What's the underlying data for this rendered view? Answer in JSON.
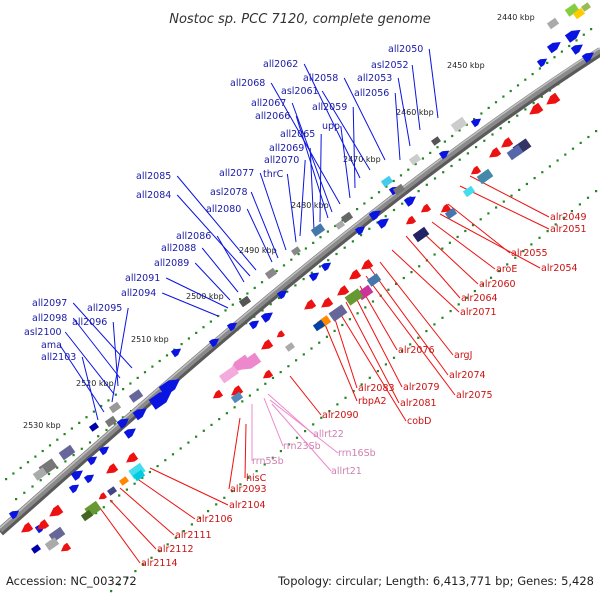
{
  "title": "Nostoc sp. PCC 7120, complete genome",
  "footer": {
    "accession": "Accession: NC_003272",
    "summary": "Topology: circular; Length: 6,413,771 bp; Genes: 5,428"
  },
  "colors": {
    "backbone": "#8a8a8a",
    "forward_gene": "#0a14e0",
    "reverse_gene": "#ee1111",
    "rna_gene": "#ee88cc",
    "tick_dot": "#228822",
    "label_forward": "#1a1aa8",
    "label_reverse": "#cc1111",
    "label_rna": "#d080b0"
  },
  "kbp_marks": [
    "2440 kbp",
    "2450 kbp",
    "2460 kbp",
    "2470 kbp",
    "2480 kbp",
    "2490 kbp",
    "2500 kbp",
    "2510 kbp",
    "2520 kbp",
    "2530 kbp"
  ],
  "upper_labels": [
    "all2050",
    "asl2052",
    "all2053",
    "all2056",
    "all2058",
    "asl2061",
    "all2062",
    "all2059",
    "upp",
    "all2068",
    "all2067",
    "all2066",
    "all2065",
    "all2069",
    "all2070",
    "thrC",
    "all2077",
    "asl2078",
    "all2080",
    "all2085",
    "all2084",
    "all2086",
    "all2088",
    "all2089",
    "all2091",
    "all2094",
    "all2097",
    "all2098",
    "all2096",
    "asl2100",
    "all2095",
    "ama",
    "all2103"
  ],
  "lower_labels": [
    "alr2049",
    "alr2051",
    "alr2055",
    "alr2054",
    "aroE",
    "alr2060",
    "alr2064",
    "alr2071",
    "argJ",
    "alr2074",
    "alr2075",
    "alr2076",
    "alr2079",
    "alr2081",
    "cobD",
    "alr2083",
    "rbpA2",
    "alr2090",
    "alr2093",
    "hisC",
    "alr2104",
    "alr2106",
    "alr2111",
    "alr2112",
    "alr2114"
  ],
  "rna_labels": [
    "allrt22",
    "rrn23Sb",
    "rrn16Sb",
    "allrt21",
    "rrn5Sb"
  ]
}
